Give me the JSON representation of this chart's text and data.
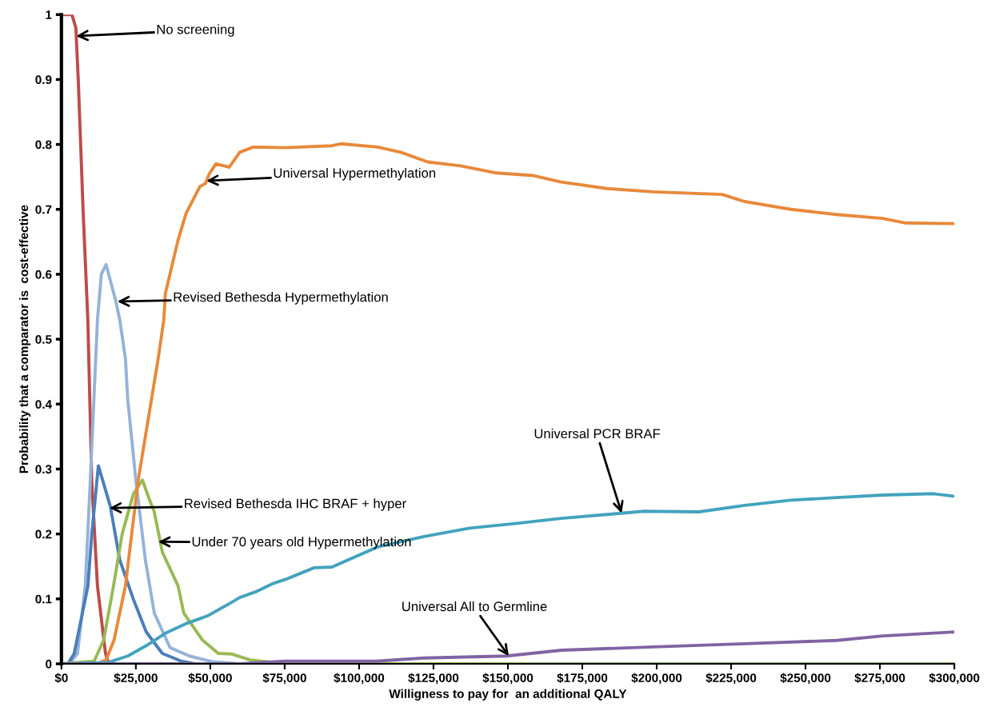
{
  "chart_data": {
    "type": "line",
    "xlabel": "Willigness to pay for  an additional QALY",
    "ylabel": "Probability that a comparator is  cost-effective",
    "xlim": [
      0,
      300000
    ],
    "ylim": [
      0,
      1
    ],
    "xticks": [
      {
        "value": 0,
        "label": "$0"
      },
      {
        "value": 25000,
        "label": "$25,000"
      },
      {
        "value": 50000,
        "label": "$50,000"
      },
      {
        "value": 75000,
        "label": "$75,000"
      },
      {
        "value": 100000,
        "label": "$100,000"
      },
      {
        "value": 125000,
        "label": "$125,000"
      },
      {
        "value": 150000,
        "label": "$150,000"
      },
      {
        "value": 175000,
        "label": "$175,000"
      },
      {
        "value": 200000,
        "label": "$200,000"
      },
      {
        "value": 225000,
        "label": "$225,000"
      },
      {
        "value": 250000,
        "label": "$250,000"
      },
      {
        "value": 275000,
        "label": "$275,000"
      },
      {
        "value": 300000,
        "label": "$300,000"
      }
    ],
    "yticks": [
      0,
      0.1,
      0.2,
      0.3,
      0.4,
      0.5,
      0.6,
      0.7,
      0.8,
      0.9,
      1
    ],
    "grid": false,
    "legend": false,
    "marker": "none",
    "line_style": "solid",
    "series": [
      {
        "color": "#be4b48",
        "x": [
          0,
          3500,
          4840,
          5650,
          7260,
          8870,
          10200,
          12100,
          14800,
          15900
        ],
        "values": [
          1,
          1,
          0.98,
          0.9,
          0.7,
          0.53,
          0.28,
          0.12,
          0.016,
          0
        ]
      },
      {
        "color": "#95b3d7",
        "x": [
          0,
          2700,
          5400,
          8000,
          9700,
          12100,
          13400,
          15000,
          18300,
          19600,
          21500,
          22300,
          25000,
          28200,
          31200,
          36500,
          43000,
          51000,
          60000,
          300000
        ],
        "values": [
          0,
          0,
          0.016,
          0.12,
          0.283,
          0.53,
          0.6,
          0.615,
          0.558,
          0.53,
          0.47,
          0.406,
          0.283,
          0.16,
          0.078,
          0.025,
          0.012,
          0.003,
          0,
          0
        ]
      },
      {
        "color": "#4a7ebb",
        "x": [
          0,
          2200,
          4300,
          8900,
          10200,
          12400,
          16400,
          19600,
          24200,
          28500,
          33900,
          40300,
          45000
        ],
        "values": [
          0,
          0,
          0.016,
          0.12,
          0.2,
          0.305,
          0.243,
          0.16,
          0.099,
          0.049,
          0.016,
          0.004,
          0
        ]
      },
      {
        "color": "#98b954",
        "x": [
          0,
          11000,
          14200,
          17500,
          20400,
          24200,
          27200,
          29800,
          31200,
          33900,
          39200,
          41100,
          47300,
          52700,
          57300,
          63400,
          75000,
          300000
        ],
        "values": [
          0,
          0.004,
          0.037,
          0.12,
          0.2,
          0.262,
          0.283,
          0.25,
          0.234,
          0.172,
          0.12,
          0.078,
          0.037,
          0.016,
          0.015,
          0.006,
          0,
          0
        ]
      },
      {
        "color": "#e8893a",
        "x": [
          0,
          12000,
          15000,
          17700,
          21500,
          25800,
          32500,
          34400,
          34900,
          39200,
          41900,
          46500,
          48400,
          49700,
          51900,
          56400,
          59900,
          64500,
          75300,
          90900,
          93800,
          106200,
          114000,
          123100,
          134100,
          146200,
          158600,
          168000,
          183300,
          198900,
          222000,
          229600,
          245100,
          260500,
          276000,
          283600,
          300000
        ],
        "values": [
          0,
          0,
          0.006,
          0.037,
          0.12,
          0.283,
          0.47,
          0.53,
          0.57,
          0.653,
          0.694,
          0.735,
          0.74,
          0.755,
          0.77,
          0.765,
          0.788,
          0.796,
          0.795,
          0.798,
          0.801,
          0.796,
          0.788,
          0.773,
          0.767,
          0.756,
          0.752,
          0.742,
          0.732,
          0.727,
          0.723,
          0.712,
          0.7,
          0.692,
          0.686,
          0.679,
          0.678
        ]
      },
      {
        "color": "#43a3bd",
        "x": [
          0,
          15600,
          22300,
          28500,
          34900,
          41900,
          49200,
          57300,
          59900,
          65300,
          70700,
          75300,
          78000,
          84900,
          90900,
          106200,
          121800,
          137100,
          152400,
          168000,
          183300,
          195700,
          214200,
          229600,
          245100,
          260500,
          276000,
          293000,
          300000
        ],
        "values": [
          0,
          0.002,
          0.012,
          0.028,
          0.047,
          0.062,
          0.074,
          0.095,
          0.102,
          0.111,
          0.123,
          0.13,
          0.135,
          0.148,
          0.149,
          0.18,
          0.196,
          0.209,
          0.216,
          0.224,
          0.23,
          0.235,
          0.234,
          0.244,
          0.252,
          0.256,
          0.26,
          0.262,
          0.258
        ]
      },
      {
        "color": "#7f64a2",
        "x": [
          0,
          60000,
          75000,
          106000,
          121800,
          149500,
          168000,
          198900,
          229600,
          260500,
          276000,
          300000
        ],
        "values": [
          0,
          0,
          0.004,
          0.004,
          0.009,
          0.012,
          0.021,
          0.026,
          0.031,
          0.036,
          0.043,
          0.049
        ]
      }
    ],
    "annotations": [
      {
        "text": "No screening",
        "x": 4970,
        "y": 0.967
      },
      {
        "text": "Universal Hypermethylation",
        "x": 48700,
        "y": 0.744
      },
      {
        "text": "Revised Bethesda Hypermethylation",
        "x": 18800,
        "y": 0.558
      },
      {
        "text": "Revised Bethesda IHC BRAF + hyper",
        "x": 16100,
        "y": 0.24
      },
      {
        "text": "Under 70 years old Hypermethylation",
        "x": 32500,
        "y": 0.188
      },
      {
        "text": "Universal PCR BRAF",
        "x": 188200,
        "y": 0.232
      },
      {
        "text": "Universal All to Germline",
        "x": 150300,
        "y": 0.012
      }
    ]
  }
}
